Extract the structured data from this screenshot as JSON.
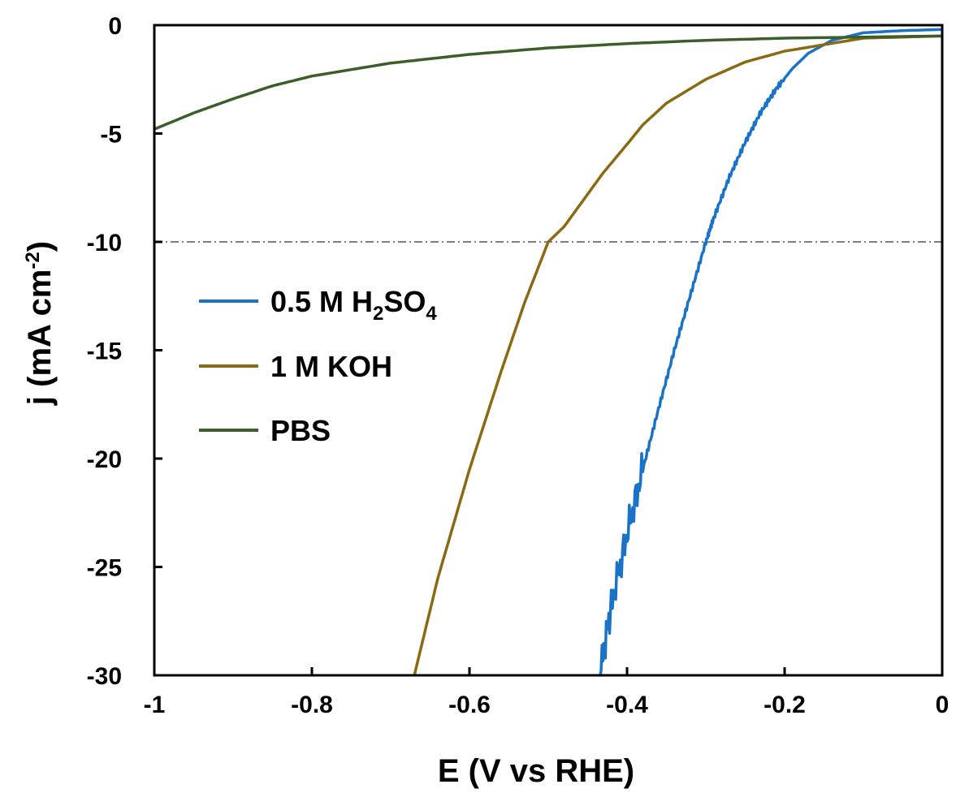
{
  "chart_data": {
    "type": "line",
    "title": "",
    "xlabel": "E (V vs RHE)",
    "ylabel_main": "j (mA cm",
    "ylabel_sup": "-2",
    "ylabel_close": ")",
    "xlim": [
      -1,
      0
    ],
    "ylim": [
      -30,
      0
    ],
    "x_ticks": [
      "-1",
      "-0.8",
      "-0.6",
      "-0.4",
      "-0.2",
      "0"
    ],
    "x_tick_values": [
      -1,
      -0.8,
      -0.6,
      -0.4,
      -0.2,
      0
    ],
    "y_ticks": [
      "0",
      "-5",
      "-10",
      "-15",
      "-20",
      "-25",
      "-30"
    ],
    "y_tick_values": [
      0,
      -5,
      -10,
      -15,
      -20,
      -25,
      -30
    ],
    "grid": false,
    "legend_position": "left",
    "reference_line": {
      "y": -10,
      "style": "dash-dot",
      "color": "#555555"
    },
    "series": [
      {
        "name": "0.5 M H2SO4",
        "label_parts": [
          "0.5 M H",
          "2",
          "SO",
          "4"
        ],
        "color": "#1a73c7",
        "noisy_below": -0.38,
        "x": [
          0,
          -0.05,
          -0.1,
          -0.14,
          -0.17,
          -0.19,
          -0.21,
          -0.23,
          -0.25,
          -0.27,
          -0.29,
          -0.3,
          -0.32,
          -0.34,
          -0.36,
          -0.38,
          -0.4,
          -0.42,
          -0.435
        ],
        "y": [
          -0.2,
          -0.25,
          -0.35,
          -0.7,
          -1.3,
          -2.0,
          -2.9,
          -4.0,
          -5.4,
          -7.0,
          -8.9,
          -10.0,
          -12.5,
          -15.0,
          -17.7,
          -20.5,
          -23.5,
          -26.8,
          -30.0
        ]
      },
      {
        "name": "1 M KOH",
        "label_parts": [
          "1 M KOH"
        ],
        "color": "#8a6a12",
        "x": [
          0,
          -0.1,
          -0.2,
          -0.25,
          -0.3,
          -0.35,
          -0.38,
          -0.4,
          -0.43,
          -0.46,
          -0.48,
          -0.5,
          -0.53,
          -0.56,
          -0.6,
          -0.64,
          -0.67
        ],
        "y": [
          -0.5,
          -0.6,
          -1.2,
          -1.7,
          -2.5,
          -3.6,
          -4.6,
          -5.5,
          -6.8,
          -8.3,
          -9.3,
          -10.0,
          -12.8,
          -16.0,
          -20.5,
          -25.5,
          -30.0
        ]
      },
      {
        "name": "PBS",
        "label_parts": [
          "PBS"
        ],
        "color": "#3d5e2b",
        "x": [
          0,
          -0.1,
          -0.2,
          -0.3,
          -0.4,
          -0.5,
          -0.6,
          -0.7,
          -0.8,
          -0.85,
          -0.9,
          -0.95,
          -1.0
        ],
        "y": [
          -0.5,
          -0.55,
          -0.6,
          -0.7,
          -0.85,
          -1.05,
          -1.35,
          -1.75,
          -2.35,
          -2.8,
          -3.4,
          -4.05,
          -4.8
        ]
      }
    ]
  }
}
